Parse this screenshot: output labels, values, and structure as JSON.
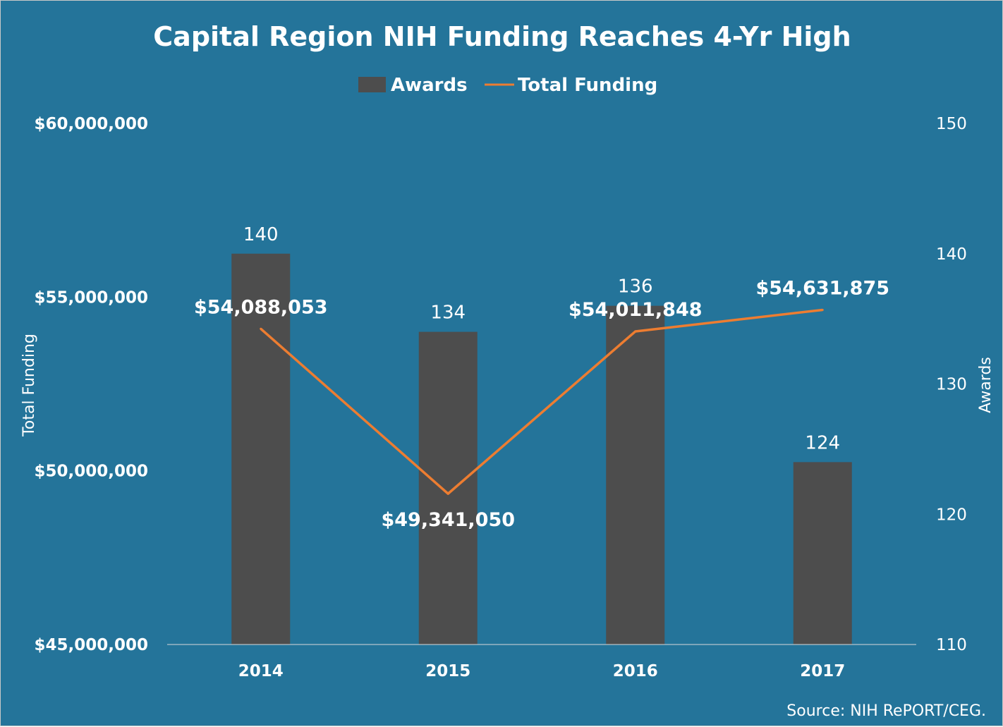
{
  "chart_data": {
    "type": "bar+line",
    "title": "Capital Region NIH Funding Reaches 4-Yr High",
    "categories": [
      "2014",
      "2015",
      "2016",
      "2017"
    ],
    "series": [
      {
        "name": "Awards",
        "type": "bar",
        "axis": "right",
        "values": [
          140,
          134,
          136,
          124
        ],
        "labels": [
          "140",
          "134",
          "136",
          "124"
        ],
        "color": "#4d4d4d"
      },
      {
        "name": "Total Funding",
        "type": "line",
        "axis": "left",
        "values": [
          54088053,
          49341050,
          54011848,
          54631875
        ],
        "labels": [
          "$54,088,053",
          "$49,341,050",
          "$54,011,848",
          "$54,631,875"
        ],
        "color": "#ed7d31"
      }
    ],
    "left_axis": {
      "label": "Total Funding",
      "range": [
        45000000,
        60000000
      ],
      "ticks": [
        45000000,
        50000000,
        55000000,
        60000000
      ],
      "tick_labels": [
        "$45,000,000",
        "$50,000,000",
        "$55,000,000",
        "$60,000,000"
      ]
    },
    "right_axis": {
      "label": "Awards",
      "range": [
        110,
        150
      ],
      "ticks": [
        110,
        120,
        130,
        140,
        150
      ],
      "tick_labels": [
        "110",
        "120",
        "130",
        "140",
        "150"
      ]
    },
    "legend": {
      "position": "top",
      "entries": [
        "Awards",
        "Total Funding"
      ]
    },
    "source": "Source:  NIH RePORT/CEG.",
    "background": "#24749a"
  }
}
